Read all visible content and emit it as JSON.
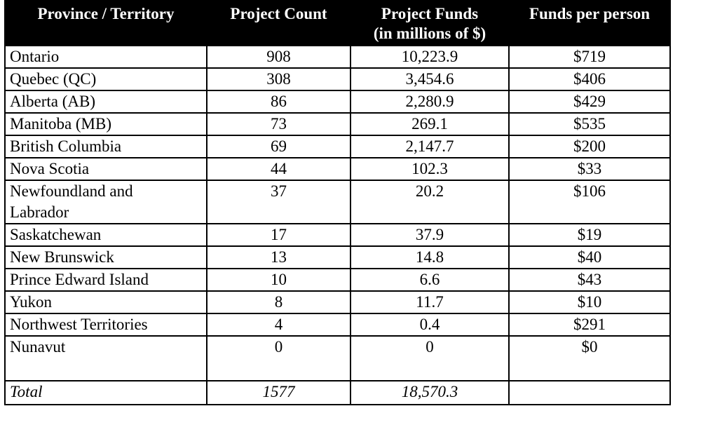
{
  "table": {
    "headers": {
      "province": "Province / Territory",
      "count": "Project Count",
      "funds_line1": "Project Funds",
      "funds_line2": "(in millions of $)",
      "per_person": "Funds per person"
    },
    "rows": [
      {
        "name": "Ontario",
        "count": "908",
        "funds": "10,223.9",
        "per_person": "$719"
      },
      {
        "name": "Quebec (QC)",
        "count": "308",
        "funds": "3,454.6",
        "per_person": "$406"
      },
      {
        "name": "Alberta (AB)",
        "count": "86",
        "funds": "2,280.9",
        "per_person": "$429"
      },
      {
        "name": "Manitoba (MB)",
        "count": "73",
        "funds": "269.1",
        "per_person": "$535"
      },
      {
        "name": "British Columbia",
        "count": "69",
        "funds": "2,147.7",
        "per_person": "$200"
      },
      {
        "name": "Nova Scotia",
        "count": "44",
        "funds": "102.3",
        "per_person": "$33"
      },
      {
        "name_line1": "Newfoundland and",
        "name_line2": "Labrador",
        "count": "37",
        "funds": "20.2",
        "per_person": "$106"
      },
      {
        "name": "Saskatchewan",
        "count": "17",
        "funds": "37.9",
        "per_person": "$19"
      },
      {
        "name": "New Brunswick",
        "count": "13",
        "funds": "14.8",
        "per_person": "$40"
      },
      {
        "name": "Prince Edward Island",
        "count": "10",
        "funds": "6.6",
        "per_person": "$43"
      },
      {
        "name": "Yukon",
        "count": "8",
        "funds": "11.7",
        "per_person": "$10"
      },
      {
        "name": "Northwest Territories",
        "count": "4",
        "funds": "0.4",
        "per_person": "$291"
      },
      {
        "name": "Nunavut",
        "count": "0",
        "funds": "0",
        "per_person": "$0"
      }
    ],
    "total": {
      "label": "Total",
      "count": "1577",
      "funds": "18,570.3",
      "per_person": ""
    }
  }
}
